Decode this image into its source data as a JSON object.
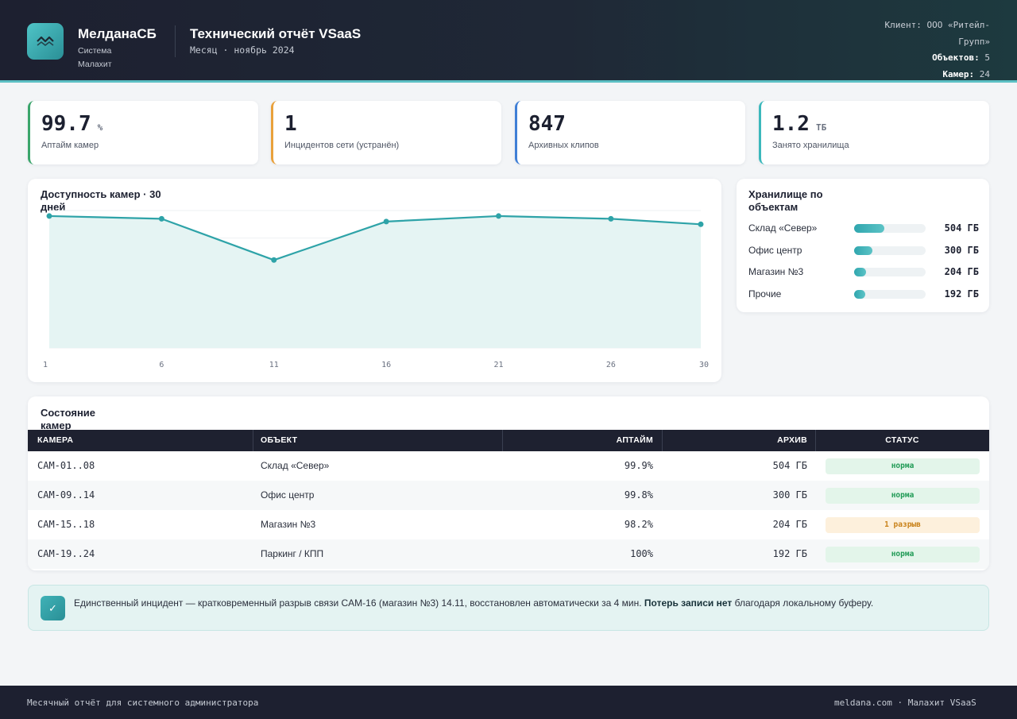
{
  "header": {
    "brand_name": "МелданаСБ",
    "brand_sub": "Система Малахит",
    "report_title": "Технический отчёт VSaaS",
    "report_period": "Месяц · ноябрь 2024",
    "client_label": "Клиент:",
    "client_value": "ООО «Ритейл-Групп»",
    "objects_label": "Объектов:",
    "objects_value": "5",
    "cameras_label": "Камер:",
    "cameras_value": "24"
  },
  "kpis": [
    {
      "value": "99.7",
      "unit": "%",
      "label": "Аптайм камер",
      "color": "#3aa56b"
    },
    {
      "value": "1",
      "unit": "",
      "label": "Инцидентов сети (устранён)",
      "color": "#e9a13b"
    },
    {
      "value": "847",
      "unit": "",
      "label": "Архивных клипов",
      "color": "#3f7fd6"
    },
    {
      "value": "1.2",
      "unit": "ТБ",
      "label": "Занято хранилища",
      "color": "#3bb8bc"
    }
  ],
  "chart_data": {
    "type": "area",
    "title": "Доступность камер · 30 дней",
    "x": [
      1,
      6,
      11,
      16,
      21,
      26,
      30
    ],
    "values": [
      99.8,
      99.7,
      98.2,
      99.6,
      99.8,
      99.7,
      99.5
    ],
    "ylim": [
      95,
      100
    ],
    "grid": true,
    "color": "#2ea3a8"
  },
  "storage": {
    "title": "Хранилище по объектам",
    "items": [
      {
        "name": "Склад «Север»",
        "size": "504 ГБ",
        "fraction": 0.42
      },
      {
        "name": "Офис центр",
        "size": "300 ГБ",
        "fraction": 0.25
      },
      {
        "name": "Магазин №3",
        "size": "204 ГБ",
        "fraction": 0.17
      },
      {
        "name": "Прочие",
        "size": "192 ГБ",
        "fraction": 0.16
      }
    ]
  },
  "table": {
    "title": "Состояние камер",
    "columns": [
      "КАМЕРА",
      "ОБЪЕКТ",
      "АПТАЙМ",
      "АРХИВ",
      "СТАТУС"
    ],
    "rows": [
      {
        "camera": "CAM-01..08",
        "object": "Склад «Север»",
        "uptime": "99.9%",
        "archive": "504 ГБ",
        "status": "норма",
        "level": "ok"
      },
      {
        "camera": "CAM-09..14",
        "object": "Офис центр",
        "uptime": "99.8%",
        "archive": "300 ГБ",
        "status": "норма",
        "level": "ok"
      },
      {
        "camera": "CAM-15..18",
        "object": "Магазин №3",
        "uptime": "98.2%",
        "archive": "204 ГБ",
        "status": "1 разрыв",
        "level": "warn"
      },
      {
        "camera": "CAM-19..24",
        "object": "Паркинг / КПП",
        "uptime": "100%",
        "archive": "192 ГБ",
        "status": "норма",
        "level": "ok"
      }
    ]
  },
  "note": {
    "icon": "check-icon",
    "text_before": "Единственный инцидент — кратковременный разрыв связи CAM-16 (магазин №3) 14.11, восстановлен автоматически за 4 мин.",
    "text_bold": "Потерь записи нет",
    "text_after": "благодаря локальному буферу."
  },
  "footer": {
    "left": "Месячный отчёт для системного администратора",
    "right": "meldana.com · Малахит VSaaS"
  }
}
